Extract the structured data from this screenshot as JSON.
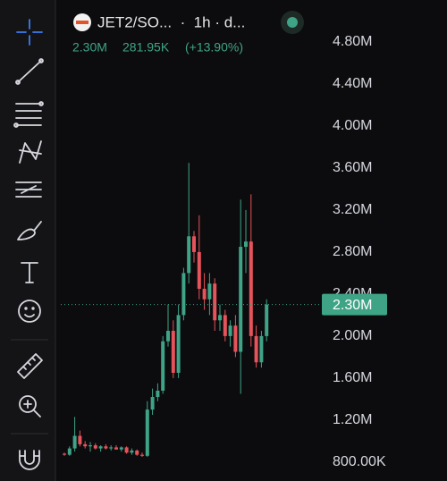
{
  "chart_data": {
    "type": "candlestick",
    "title": "JET2/SO...  ·  1h · d...",
    "last": {
      "value": 2300000,
      "label": "2.30M"
    },
    "change": "281.95K",
    "change_percent": "(+13.90%)",
    "up_color": "#3fa386",
    "down_color": "#e5535b",
    "ylim": [
      620000,
      5200000
    ],
    "yticks": [
      {
        "value": 800000,
        "label": "800.00K"
      },
      {
        "value": 1200000,
        "label": "1.20M"
      },
      {
        "value": 1600000,
        "label": "1.60M"
      },
      {
        "value": 2000000,
        "label": "2.00M"
      },
      {
        "value": 2400000,
        "label": "2.40M"
      },
      {
        "value": 2800000,
        "label": "2.80M"
      },
      {
        "value": 3200000,
        "label": "3.20M"
      },
      {
        "value": 3600000,
        "label": "3.60M"
      },
      {
        "value": 4000000,
        "label": "4.00M"
      },
      {
        "value": 4400000,
        "label": "4.40M"
      },
      {
        "value": 4800000,
        "label": "4.80M"
      }
    ],
    "open": [
      880000,
      870000,
      930000,
      1050000,
      970000,
      950000,
      960000,
      930000,
      950000,
      930000,
      940000,
      920000,
      940000,
      890000,
      910000,
      870000,
      860000,
      1300000,
      1420000,
      1480000,
      1950000,
      2050000,
      1650000,
      2200000,
      2600000,
      2950000,
      2800000,
      2450000,
      2350000,
      2500000,
      2150000,
      2200000,
      2000000,
      2100000,
      1850000,
      2850000,
      2900000,
      2000000,
      1750000,
      2000000
    ],
    "high": [
      890000,
      950000,
      1230000,
      1100000,
      1000000,
      990000,
      980000,
      960000,
      970000,
      960000,
      960000,
      950000,
      950000,
      930000,
      920000,
      890000,
      1380000,
      1500000,
      1550000,
      2000000,
      2300000,
      2150000,
      2300000,
      2650000,
      3650000,
      3000000,
      3150000,
      2600000,
      2600000,
      2550000,
      2300000,
      2250000,
      2150000,
      2200000,
      3300000,
      3200000,
      3350000,
      2100000,
      2050000,
      2350000
    ],
    "low": [
      860000,
      860000,
      900000,
      950000,
      930000,
      900000,
      920000,
      900000,
      920000,
      910000,
      920000,
      900000,
      880000,
      870000,
      860000,
      850000,
      850000,
      1250000,
      1380000,
      1450000,
      1900000,
      1600000,
      1600000,
      2150000,
      2500000,
      2700000,
      2350000,
      2250000,
      2200000,
      2050000,
      2050000,
      1950000,
      1900000,
      1800000,
      1450000,
      2600000,
      1900000,
      1700000,
      1700000,
      1950000
    ],
    "close": [
      870000,
      930000,
      1050000,
      970000,
      950000,
      960000,
      930000,
      950000,
      930000,
      940000,
      920000,
      940000,
      890000,
      910000,
      870000,
      860000,
      1300000,
      1420000,
      1480000,
      1950000,
      2050000,
      1650000,
      2200000,
      2600000,
      2950000,
      2800000,
      2450000,
      2350000,
      2500000,
      2150000,
      2200000,
      2000000,
      2100000,
      1850000,
      2850000,
      2900000,
      2000000,
      1750000,
      2000000,
      2300000
    ]
  }
}
